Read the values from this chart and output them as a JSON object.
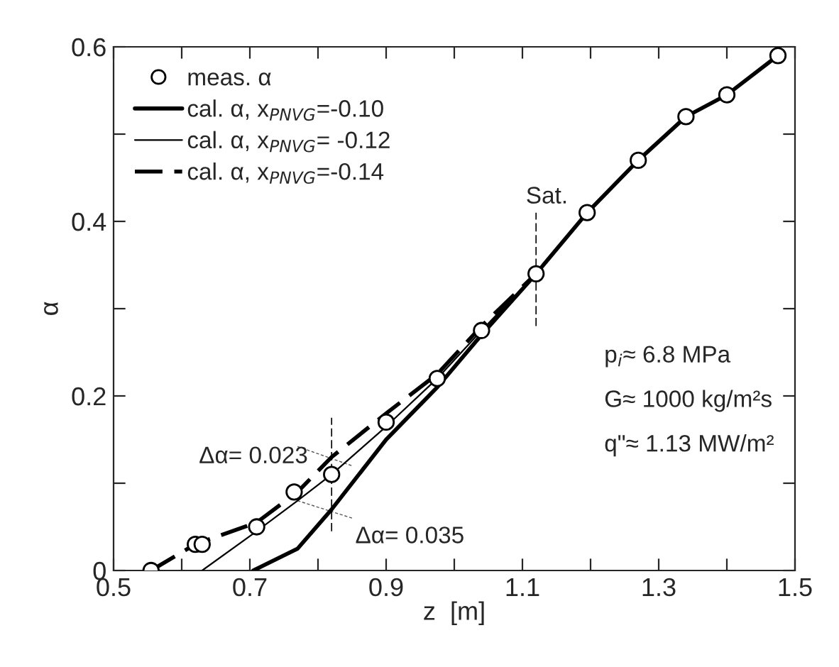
{
  "chart_data": {
    "type": "line",
    "xlabel": "z  [m]",
    "ylabel": "α",
    "xlim": [
      0.5,
      1.5
    ],
    "ylim": [
      0,
      0.6
    ],
    "xticks": [
      {
        "value": 0.5,
        "label": "0.5"
      },
      {
        "value": 0.6,
        "label": null
      },
      {
        "value": 0.7,
        "label": "0.7"
      },
      {
        "value": 0.8,
        "label": null
      },
      {
        "value": 0.9,
        "label": "0.9"
      },
      {
        "value": 1.0,
        "label": null
      },
      {
        "value": 1.1,
        "label": "1.1"
      },
      {
        "value": 1.2,
        "label": null
      },
      {
        "value": 1.3,
        "label": "1.3"
      },
      {
        "value": 1.4,
        "label": null
      },
      {
        "value": 1.5,
        "label": "1.5"
      }
    ],
    "yticks": [
      0,
      {
        "value": 0.1,
        "label": null
      },
      0.2,
      {
        "value": 0.3,
        "label": null
      },
      0.4,
      {
        "value": 0.5,
        "label": null
      },
      0.6
    ],
    "grid": false,
    "legend": "top left",
    "series": [
      {
        "name": "meas. α",
        "type": "scatter",
        "marker": "circle",
        "color": "#000000",
        "x": [
          0.555,
          0.62,
          0.63,
          0.71,
          0.765,
          0.82,
          0.9,
          0.975,
          1.04,
          1.12,
          1.195,
          1.27,
          1.34,
          1.4,
          1.475
        ],
        "values": [
          0,
          0.03,
          0.03,
          0.05,
          0.09,
          0.11,
          0.17,
          0.22,
          0.275,
          0.34,
          0.41,
          0.47,
          0.52,
          0.545,
          0.59
        ]
      },
      {
        "name": "cal. α, x$_{PNVG}$=-0.10",
        "line_style": "solid",
        "color": "#000000",
        "x": [
          0.705,
          0.77,
          0.82,
          0.9,
          0.975,
          1.04,
          1.12,
          1.195,
          1.27,
          1.34,
          1.4,
          1.475
        ],
        "values": [
          0,
          0.025,
          0.07,
          0.15,
          0.21,
          0.27,
          0.34,
          0.41,
          0.47,
          0.52,
          0.545,
          0.59
        ]
      },
      {
        "name": "cal. α, x$_{PNVG}$= -0.12",
        "line_style": "solid",
        "color": "#000000",
        "x": [
          0.63,
          0.71,
          0.77,
          0.82,
          0.9,
          0.975,
          1.04,
          1.12
        ],
        "values": [
          0,
          0.045,
          0.08,
          0.11,
          0.165,
          0.22,
          0.275,
          0.34
        ]
      },
      {
        "name": "cal. α, x$_{PNVG}$=-0.14",
        "line_style": "dashed",
        "color": "#000000",
        "x": [
          0.555,
          0.62,
          0.71,
          0.77,
          0.82,
          0.9,
          0.975,
          1.04,
          1.12
        ],
        "values": [
          0,
          0.03,
          0.055,
          0.09,
          0.13,
          0.18,
          0.225,
          0.28,
          0.34
        ]
      }
    ],
    "ref_lines": [
      {
        "axis": "x",
        "value": 1.12,
        "label": "Sat.",
        "line_style": "dashed",
        "color": "#000000"
      },
      {
        "axis": "x",
        "value": 0.82,
        "label": null,
        "line_style": "dashed",
        "color": "#000000"
      }
    ],
    "annotations": [
      {
        "text": "Δα= 0.023",
        "x": 0.82,
        "y": 0.13
      },
      {
        "text": "Δα= 0.035",
        "x": 0.82,
        "y": 0.07
      },
      "p$_{i}$≈ 6.8 MPa",
      "G≈ 1000 kg/m²s",
      "q\"≈ 1.13 MW/m²"
    ]
  }
}
